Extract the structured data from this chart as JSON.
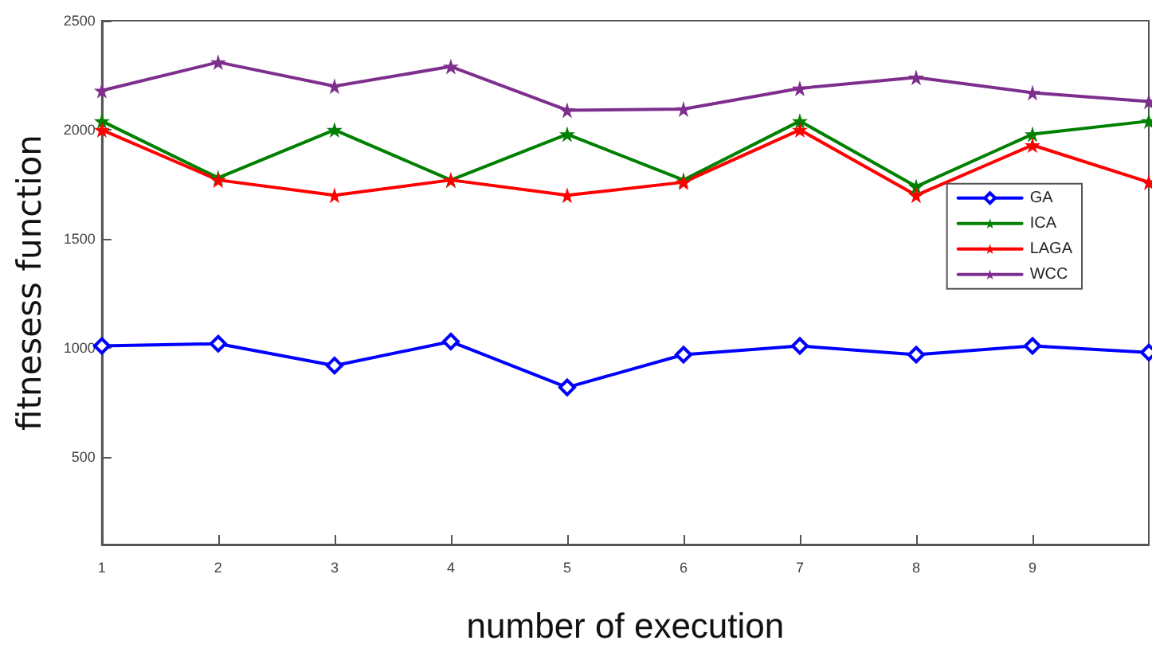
{
  "chart_data": {
    "type": "line",
    "xlabel": "number of execution",
    "ylabel": "fitnesess function",
    "x": [
      1,
      2,
      3,
      4,
      5,
      6,
      7,
      8,
      9,
      10
    ],
    "xlim": [
      1,
      10
    ],
    "xticks": [
      1,
      2,
      3,
      4,
      5,
      6,
      7,
      8,
      9
    ],
    "ylim": [
      100,
      2500
    ],
    "yticks": [
      500,
      1000,
      1500,
      2000,
      2500
    ],
    "grid": false,
    "legend": "right",
    "line_style": "solid",
    "series": [
      {
        "name": "GA",
        "color": "#0000ff",
        "marker": "diamond",
        "values": [
          1010,
          1020,
          920,
          1030,
          820,
          970,
          1010,
          970,
          1010,
          980
        ]
      },
      {
        "name": "ICA",
        "color": "#008000",
        "marker": "star",
        "values": [
          2040,
          1780,
          2000,
          1770,
          1980,
          1770,
          2040,
          1740,
          1980,
          2040
        ]
      },
      {
        "name": "LAGA",
        "color": "#ff0000",
        "marker": "star",
        "values": [
          2000,
          1770,
          1700,
          1770,
          1700,
          1760,
          2000,
          1700,
          1930,
          1760
        ]
      },
      {
        "name": "WCC",
        "color": "#7e2f8e",
        "marker": "star",
        "values": [
          2180,
          2310,
          2200,
          2290,
          2090,
          2095,
          2190,
          2240,
          2170,
          2130
        ]
      }
    ]
  }
}
